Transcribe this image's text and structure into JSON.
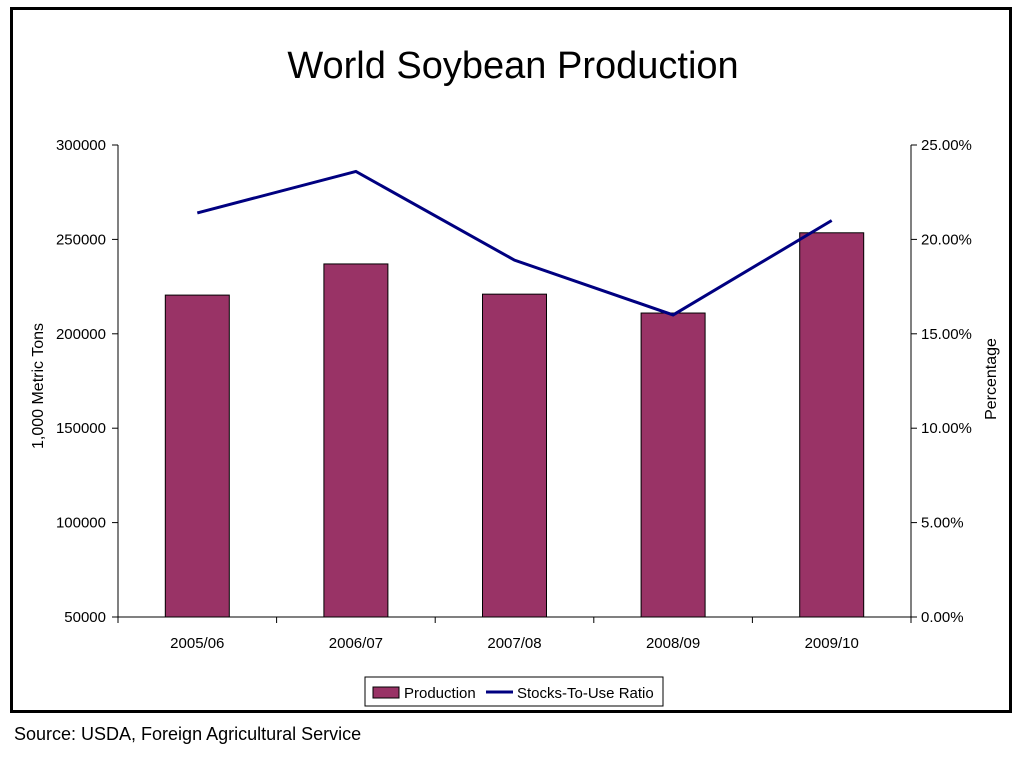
{
  "chart_data": {
    "type": "bar",
    "title": "World Soybean Production",
    "categories": [
      "2005/06",
      "2006/07",
      "2007/08",
      "2008/09",
      "2009/10"
    ],
    "series": [
      {
        "name": "Production",
        "type": "bar",
        "axis": "left",
        "color": "#993366",
        "values": [
          220500,
          237000,
          221000,
          211000,
          253500
        ]
      },
      {
        "name": "Stocks-To-Use Ratio",
        "type": "line",
        "axis": "right",
        "color": "#000080",
        "values": [
          0.214,
          0.236,
          0.189,
          0.16,
          0.21
        ]
      }
    ],
    "ylabel": "1,000 Metric Tons",
    "y2label": "Percentage",
    "ylim": [
      50000,
      300000
    ],
    "y2lim": [
      0,
      0.25
    ],
    "yticks": [
      "50000",
      "100000",
      "150000",
      "200000",
      "250000",
      "300000"
    ],
    "y2ticks": [
      "0.00%",
      "5.00%",
      "10.00%",
      "15.00%",
      "20.00%",
      "25.00%"
    ],
    "grid": false,
    "legend": "bottom"
  },
  "source_note": "Source: USDA, Foreign Agricultural Service"
}
